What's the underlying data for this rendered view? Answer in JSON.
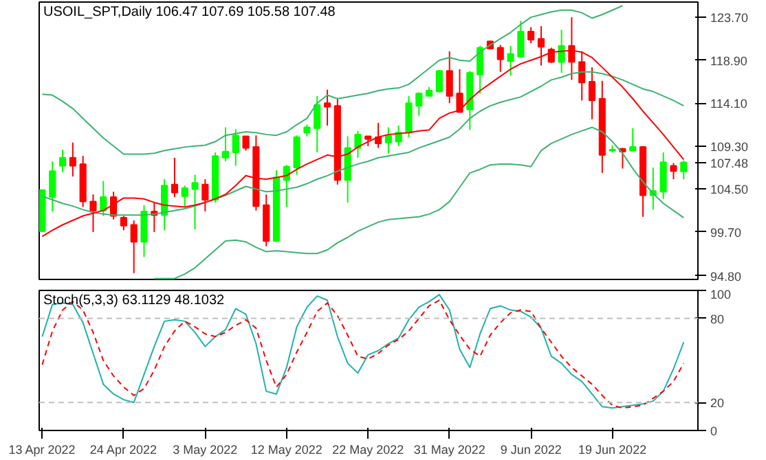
{
  "chart_data": [
    {
      "type": "candlestick",
      "title": "USOIL_SPT,Daily  106.47 107.69 105.58 107.48",
      "categories": [
        null,
        null,
        null,
        null,
        null,
        null,
        null,
        null,
        null,
        null,
        null,
        null,
        null,
        null,
        null,
        null,
        null,
        null,
        null,
        null,
        null,
        null,
        null,
        null,
        null,
        null,
        null,
        null,
        null,
        null,
        null,
        null,
        null,
        null,
        null,
        null,
        null,
        null,
        null,
        null,
        null,
        null,
        null,
        null,
        null,
        null,
        null,
        null,
        null,
        null,
        null,
        null,
        null,
        null,
        null,
        null,
        null,
        null,
        null,
        null,
        null,
        null,
        null,
        null
      ],
      "ohlc": [
        [
          99.8,
          104.4,
          99.7,
          104.4
        ],
        [
          103.6,
          107.6,
          102.0,
          106.5
        ],
        [
          107.1,
          108.9,
          106.4,
          108.0
        ],
        [
          108.0,
          109.7,
          105.9,
          107.1
        ],
        [
          107.3,
          108.2,
          102.5,
          103.1
        ],
        [
          103.1,
          103.9,
          99.7,
          102.1
        ],
        [
          102.1,
          105.4,
          101.5,
          103.6
        ],
        [
          103.6,
          104.2,
          101.1,
          101.5
        ],
        [
          101.3,
          101.5,
          99.9,
          100.4
        ],
        [
          100.5,
          101.0,
          95.1,
          98.6
        ],
        [
          98.6,
          102.7,
          96.9,
          102.0
        ],
        [
          102.0,
          103.0,
          99.7,
          101.6
        ],
        [
          101.6,
          105.6,
          99.9,
          104.9
        ],
        [
          105.0,
          108.0,
          103.6,
          104.1
        ],
        [
          103.7,
          104.9,
          102.5,
          104.6
        ],
        [
          104.5,
          106.1,
          100.0,
          105.2
        ],
        [
          105.0,
          105.6,
          102.0,
          103.3
        ],
        [
          103.3,
          108.6,
          103.0,
          108.2
        ],
        [
          108.0,
          111.4,
          107.6,
          108.7
        ],
        [
          108.6,
          111.2,
          107.1,
          110.5
        ],
        [
          110.4,
          110.4,
          108.8,
          109.1
        ],
        [
          109.2,
          110.5,
          102.1,
          102.6
        ],
        [
          102.7,
          103.9,
          98.1,
          98.7
        ],
        [
          98.7,
          106.6,
          98.6,
          105.8
        ],
        [
          105.5,
          107.2,
          102.5,
          107.0
        ],
        [
          106.9,
          110.5,
          106.1,
          110.3
        ],
        [
          110.8,
          111.7,
          110.4,
          111.4
        ],
        [
          111.3,
          114.9,
          108.6,
          113.9
        ],
        [
          114.1,
          115.6,
          111.6,
          113.7
        ],
        [
          113.8,
          114.6,
          105.0,
          105.5
        ],
        [
          105.5,
          110.4,
          103.0,
          109.1
        ],
        [
          109.1,
          111.0,
          108.0,
          110.6
        ],
        [
          110.4,
          110.4,
          109.3,
          110.1
        ],
        [
          110.3,
          111.9,
          109.1,
          109.6
        ],
        [
          109.7,
          111.4,
          108.5,
          110.5
        ],
        [
          109.8,
          111.6,
          109.3,
          110.8
        ],
        [
          110.8,
          114.9,
          110.3,
          114.1
        ],
        [
          113.8,
          115.3,
          112.7,
          115.2
        ],
        [
          114.9,
          115.9,
          114.9,
          115.5
        ],
        [
          115.4,
          117.8,
          115.3,
          117.7
        ],
        [
          117.7,
          119.9,
          114.1,
          114.9
        ],
        [
          115.2,
          117.9,
          113.1,
          113.1
        ],
        [
          113.4,
          117.7,
          111.1,
          117.5
        ],
        [
          117.3,
          120.5,
          115.2,
          120.3
        ],
        [
          121.0,
          121.1,
          120.1,
          120.2
        ],
        [
          120.3,
          120.6,
          117.6,
          119.0
        ],
        [
          118.8,
          120.5,
          117.2,
          119.6
        ],
        [
          119.3,
          123.3,
          119.2,
          122.1
        ],
        [
          122.1,
          122.6,
          120.8,
          121.2
        ],
        [
          121.3,
          122.7,
          118.3,
          120.4
        ],
        [
          120.1,
          120.3,
          118.6,
          118.7
        ],
        [
          118.7,
          122.3,
          117.5,
          120.5
        ],
        [
          120.5,
          123.7,
          116.7,
          118.7
        ],
        [
          118.7,
          119.9,
          114.4,
          116.4
        ],
        [
          116.5,
          118.1,
          112.3,
          114.4
        ],
        [
          114.6,
          116.6,
          106.3,
          108.3
        ],
        [
          108.8,
          109.4,
          108.6,
          108.9
        ],
        [
          109.0,
          109.1,
          106.8,
          108.7
        ],
        [
          108.8,
          111.3,
          108.8,
          109.2
        ],
        [
          109.2,
          109.3,
          101.4,
          103.8
        ],
        [
          103.8,
          106.9,
          102.2,
          104.3
        ],
        [
          104.2,
          108.6,
          103.4,
          107.5
        ],
        [
          107.1,
          107.4,
          105.6,
          106.5
        ],
        [
          106.47,
          107.69,
          105.58,
          107.48
        ]
      ],
      "colors": [
        "#00ff00",
        "#00ff00",
        "#00ff00",
        "#ff0000",
        "#ff0000",
        "#ff0000",
        "#00ff00",
        "#ff0000",
        "#ff0000",
        "#ff0000",
        "#00ff00",
        "#ff0000",
        "#00ff00",
        "#ff0000",
        "#00ff00",
        "#00ff00",
        "#ff0000",
        "#00ff00",
        "#00ff00",
        "#00ff00",
        "#ff0000",
        "#ff0000",
        "#ff0000",
        "#00ff00",
        "#00ff00",
        "#00ff00",
        "#00ff00",
        "#00ff00",
        "#ff0000",
        "#ff0000",
        "#00ff00",
        "#00ff00",
        "#ff0000",
        "#ff0000",
        "#00ff00",
        "#00ff00",
        "#00ff00",
        "#00ff00",
        "#00ff00",
        "#00ff00",
        "#ff0000",
        "#ff0000",
        "#00ff00",
        "#00ff00",
        "#ff0000",
        "#ff0000",
        "#00ff00",
        "#00ff00",
        "#ff0000",
        "#ff0000",
        "#ff0000",
        "#00ff00",
        "#ff0000",
        "#ff0000",
        "#ff0000",
        "#ff0000",
        "#00ff00",
        "#ff0000",
        "#00ff00",
        "#ff0000",
        "#00ff00",
        "#00ff00",
        "#ff0000",
        "#00ff00"
      ],
      "series": [
        {
          "type": "line",
          "color": "#3cb371",
          "values": [
            115.1,
            115.0,
            114.3,
            113.5,
            112.4,
            111.3,
            110.2,
            109.3,
            108.4,
            108.4,
            108.4,
            108.5,
            108.8,
            109.0,
            109.2,
            109.3,
            109.4,
            109.8,
            110.5,
            110.7,
            110.9,
            110.8,
            110.6,
            110.5,
            110.9,
            111.7,
            112.4,
            114.1,
            115.0,
            114.6,
            114.8,
            115.0,
            115.2,
            115.5,
            115.7,
            115.8,
            116.2,
            117.1,
            118.0,
            118.9,
            119.2,
            118.9,
            118.8,
            119.8,
            120.6,
            121.3,
            122.0,
            122.9,
            123.7,
            124.0,
            124.3,
            124.5,
            124.5,
            124.2,
            123.6,
            124.0,
            124.5,
            125.0,
            null,
            null,
            null,
            null,
            null,
            null
          ]
        },
        {
          "type": "line",
          "color": "#3cb371",
          "values": [
            103.7,
            103.3,
            102.9,
            102.6,
            102.2,
            101.9,
            101.7,
            101.6,
            101.6,
            101.6,
            101.6,
            101.7,
            101.9,
            102.1,
            102.3,
            102.6,
            103.0,
            103.4,
            103.8,
            104.3,
            104.8,
            104.5,
            104.2,
            104.3,
            104.5,
            104.7,
            105.1,
            105.6,
            106.0,
            106.5,
            106.9,
            107.3,
            107.6,
            108.0,
            108.2,
            108.4,
            108.6,
            109.1,
            109.5,
            109.9,
            110.3,
            111.2,
            112.4,
            113.2,
            113.8,
            114.2,
            114.5,
            114.8,
            115.4,
            116.0,
            116.7,
            117.0,
            117.4,
            117.6,
            117.6,
            117.4,
            117.1,
            116.7,
            116.2,
            115.7,
            115.4,
            114.9,
            114.4,
            113.8
          ]
        },
        {
          "type": "line",
          "color": "#3cb371",
          "values": [
            null,
            null,
            null,
            null,
            null,
            null,
            null,
            null,
            null,
            null,
            null,
            94.5,
            94.5,
            94.5,
            95.0,
            95.7,
            96.7,
            97.7,
            98.7,
            98.8,
            98.6,
            98.0,
            97.5,
            97.6,
            97.5,
            97.4,
            97.3,
            97.3,
            97.7,
            98.5,
            99.1,
            99.8,
            100.3,
            100.8,
            101.1,
            101.2,
            101.3,
            101.4,
            101.7,
            102.2,
            103.1,
            104.7,
            106.3,
            106.7,
            107.2,
            107.3,
            107.3,
            107.2,
            107.0,
            108.8,
            109.6,
            110.1,
            110.6,
            111.0,
            111.4,
            110.9,
            109.8,
            108.5,
            106.8,
            105.3,
            104.0,
            102.9,
            102.1,
            101.3
          ]
        },
        {
          "type": "line",
          "color": "#ff0000",
          "values": [
            99.2,
            99.9,
            100.5,
            101.0,
            101.5,
            101.8,
            102.1,
            102.8,
            103.5,
            103.5,
            103.4,
            103.0,
            102.7,
            102.6,
            102.5,
            102.7,
            103.0,
            103.4,
            103.9,
            104.9,
            106.0,
            105.7,
            105.6,
            105.8,
            106.0,
            106.7,
            107.3,
            107.8,
            108.3,
            108.1,
            108.4,
            109.2,
            109.8,
            110.3,
            110.6,
            110.7,
            110.8,
            111.0,
            111.1,
            112.4,
            113.0,
            113.3,
            114.5,
            115.5,
            116.3,
            117.1,
            117.9,
            118.5,
            118.9,
            119.3,
            119.8,
            119.9,
            120.0,
            119.8,
            119.2,
            118.1,
            117.0,
            115.9,
            114.6,
            113.2,
            111.9,
            110.6,
            109.2,
            107.8
          ]
        }
      ],
      "ylim": [
        94.4,
        125.4
      ],
      "yticks": [
        {
          "value": 94.8,
          "label": "94.80"
        },
        {
          "value": 99.7,
          "label": "99.70"
        },
        {
          "value": 104.5,
          "label": "104.50"
        },
        {
          "value": 107.48,
          "label": "107.48"
        },
        {
          "value": 109.3,
          "label": "109.30"
        },
        {
          "value": 114.1,
          "label": "114.10"
        },
        {
          "value": 118.9,
          "label": "118.90"
        },
        {
          "value": 123.7,
          "label": "123.70"
        }
      ],
      "tick_labels": "y"
    },
    {
      "type": "line",
      "title": "Stoch(5,3,3) 63.1129 48.1032",
      "categories": [
        "13 Apr 2022",
        null,
        null,
        null,
        null,
        null,
        null,
        null,
        "24 Apr 2022",
        null,
        null,
        null,
        null,
        null,
        null,
        null,
        "3 May 2022",
        null,
        null,
        null,
        null,
        null,
        null,
        null,
        "12 May 2022",
        null,
        null,
        null,
        null,
        null,
        null,
        null,
        "22 May 2022",
        null,
        null,
        null,
        null,
        null,
        null,
        null,
        "31 May 2022",
        null,
        null,
        null,
        null,
        null,
        null,
        null,
        "9 Jun 2022",
        null,
        null,
        null,
        null,
        null,
        null,
        null,
        "19 Jun 2022",
        null,
        null,
        null,
        null,
        null,
        null,
        null
      ],
      "series": [
        {
          "color": "#20b2aa",
          "line_style": "solid",
          "values": [
            67,
            90,
            91,
            90,
            77,
            55,
            33,
            26,
            22,
            20,
            40,
            60,
            78,
            79,
            78,
            70,
            60,
            67,
            72,
            87,
            83,
            62,
            28,
            26,
            45,
            74,
            88,
            96,
            93,
            67,
            48,
            41,
            54,
            57,
            62,
            66,
            79,
            88,
            92,
            97,
            86,
            58,
            45,
            69,
            87,
            89,
            86,
            85,
            81,
            73,
            53,
            48,
            40,
            35,
            26,
            17,
            16,
            17,
            18,
            19,
            21,
            28,
            44,
            63
          ]
        },
        {
          "color": "#ff0000",
          "line_style": "dashed",
          "values": [
            47,
            71,
            86,
            92,
            86,
            70,
            50,
            39,
            31,
            25,
            30,
            43,
            60,
            71,
            78,
            74,
            69,
            67,
            70,
            75,
            79,
            73,
            50,
            31,
            40,
            56,
            70,
            85,
            91,
            82,
            68,
            53,
            51,
            55,
            61,
            65,
            71,
            80,
            89,
            93,
            79,
            68,
            58,
            53,
            68,
            77,
            84,
            86,
            85,
            73,
            63,
            53,
            45,
            39,
            33,
            25,
            18,
            16,
            17,
            18,
            23,
            28,
            35,
            48
          ]
        }
      ],
      "ylim": [
        0,
        100
      ],
      "yticks": [
        0,
        20,
        80,
        100
      ],
      "ref_lines": [
        {
          "axis": "y",
          "value": 20,
          "color": "#c0c0c0",
          "line_style": "dashed"
        },
        {
          "axis": "y",
          "value": 80,
          "color": "#c0c0c0",
          "line_style": "dashed"
        }
      ]
    }
  ]
}
